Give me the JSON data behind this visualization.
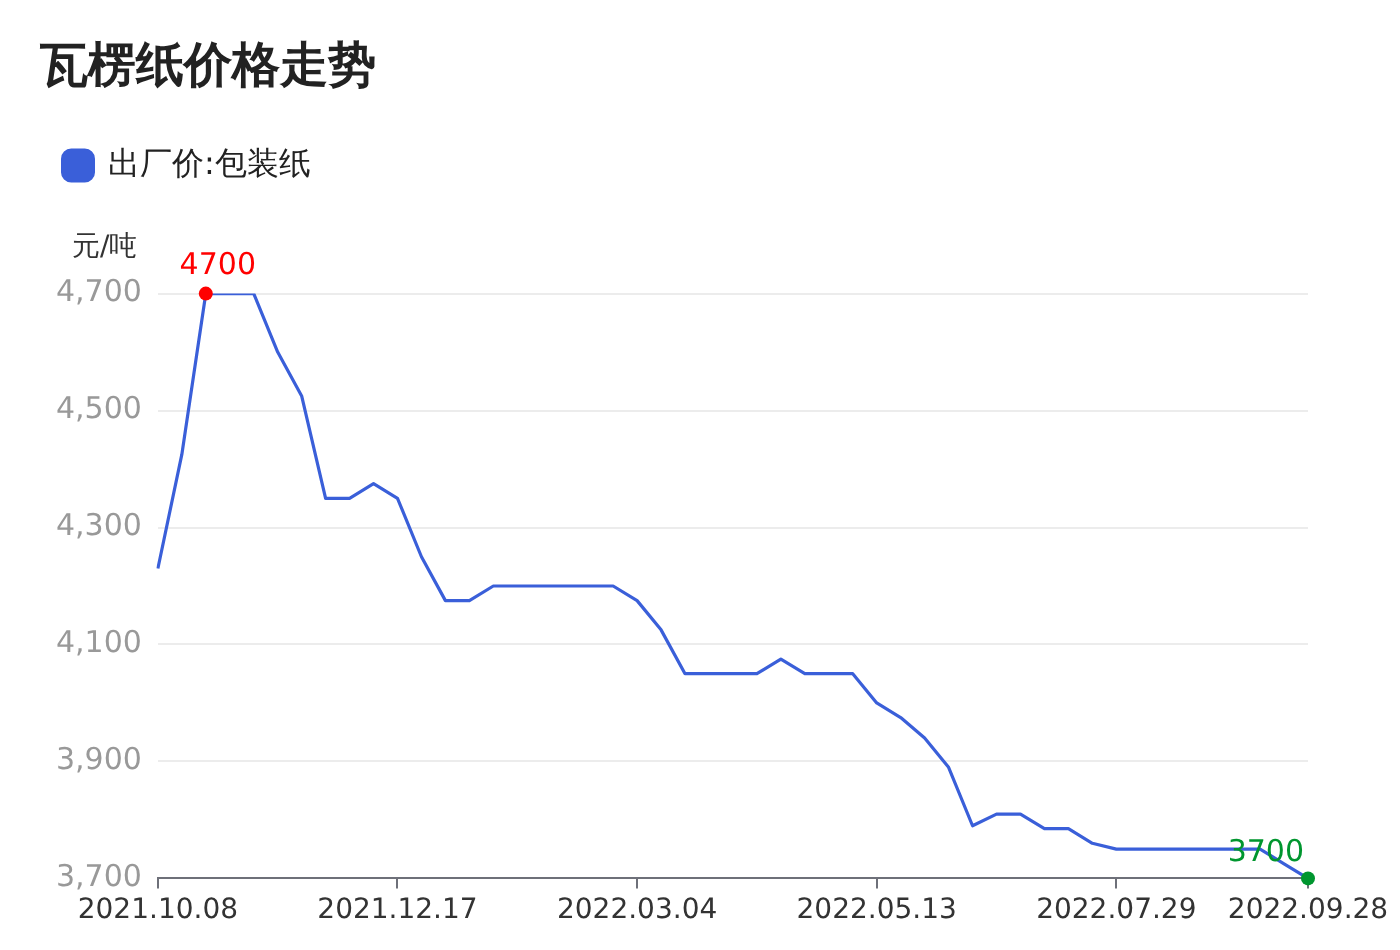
{
  "chart_data": {
    "type": "line",
    "title": "瓦楞纸价格走势",
    "ylabel": "元/吨",
    "categories": [
      "2021.10.08",
      null,
      null,
      null,
      null,
      null,
      null,
      null,
      null,
      null,
      "2021.12.17",
      null,
      null,
      null,
      null,
      null,
      null,
      null,
      null,
      null,
      "2022.03.04",
      null,
      null,
      null,
      null,
      null,
      null,
      null,
      null,
      null,
      "2022.05.13",
      null,
      null,
      null,
      null,
      null,
      null,
      null,
      null,
      null,
      "2022.07.29",
      null,
      null,
      null,
      null,
      null,
      null,
      null,
      "2022.09.28"
    ],
    "series": [
      {
        "name": "出厂价:包装纸",
        "color": "#3a5fd9",
        "values": [
          4230,
          4425,
          4700,
          4700,
          4700,
          4600,
          4525,
          4350,
          4350,
          4375,
          4350,
          4250,
          4175,
          4175,
          4200,
          4200,
          4200,
          4200,
          4200,
          4200,
          4175,
          4125,
          4050,
          4050,
          4050,
          4050,
          4075,
          4050,
          4050,
          4050,
          4000,
          3975,
          3940,
          3890,
          3790,
          3810,
          3810,
          3785,
          3785,
          3760,
          3750,
          3750,
          3750,
          3750,
          3750,
          3750,
          3750,
          3725,
          3700
        ]
      }
    ],
    "ylim": [
      3700,
      4700
    ],
    "yticks": [
      {
        "value": 3700,
        "label": "3,700"
      },
      {
        "value": 3900,
        "label": "3,900"
      },
      {
        "value": 4100,
        "label": "4,100"
      },
      {
        "value": 4300,
        "label": "4,300"
      },
      {
        "value": 4500,
        "label": "4,500"
      },
      {
        "value": 4700,
        "label": "4,700"
      }
    ],
    "grid": "y",
    "legend": "top left",
    "marker": "none",
    "line_style": "solid",
    "annotations": [
      {
        "text": "4700",
        "y": 4700
      },
      {
        "text": "3700",
        "x": "2022.09.28",
        "y": 3700
      }
    ]
  }
}
